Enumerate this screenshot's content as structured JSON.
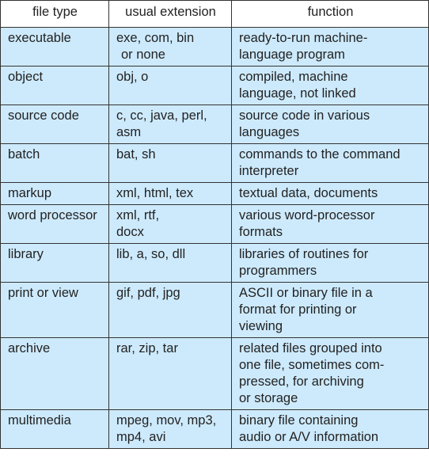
{
  "headers": {
    "file_type": "file type",
    "usual_extension": "usual extension",
    "function": "function"
  },
  "rows": [
    {
      "type": "executable",
      "ext": [
        "exe, com, bin",
        "or none"
      ],
      "func": [
        "ready-to-run machine-",
        "language program"
      ]
    },
    {
      "type": "object",
      "ext": [
        "obj, o"
      ],
      "func": [
        "compiled, machine",
        "language, not linked"
      ]
    },
    {
      "type": "source code",
      "ext": [
        "c, cc, java, perl,",
        "asm"
      ],
      "func": [
        "source code in various",
        "languages"
      ]
    },
    {
      "type": "batch",
      "ext": [
        "bat, sh"
      ],
      "func": [
        "commands to the command",
        "interpreter"
      ]
    },
    {
      "type": "markup",
      "ext": [
        "xml, html, tex"
      ],
      "func": [
        "textual data, documents"
      ]
    },
    {
      "type": "word processor",
      "ext": [
        "xml, rtf,",
        "docx"
      ],
      "func": [
        "various word-processor",
        "formats"
      ]
    },
    {
      "type": "library",
      "ext": [
        "lib, a, so, dll"
      ],
      "func": [
        "libraries of routines for",
        "programmers"
      ]
    },
    {
      "type": "print or view",
      "ext": [
        "gif, pdf, jpg"
      ],
      "func": [
        "ASCII or binary file in a",
        "format for printing or",
        "viewing"
      ]
    },
    {
      "type": "archive",
      "ext": [
        "rar, zip, tar"
      ],
      "func": [
        "related files grouped into",
        "one file, sometimes com-",
        "pressed, for archiving",
        "or storage"
      ]
    },
    {
      "type": "multimedia",
      "ext": [
        "mpeg, mov, mp3,",
        "mp4, avi"
      ],
      "func": [
        "binary file containing",
        "audio or A/V information"
      ]
    }
  ]
}
